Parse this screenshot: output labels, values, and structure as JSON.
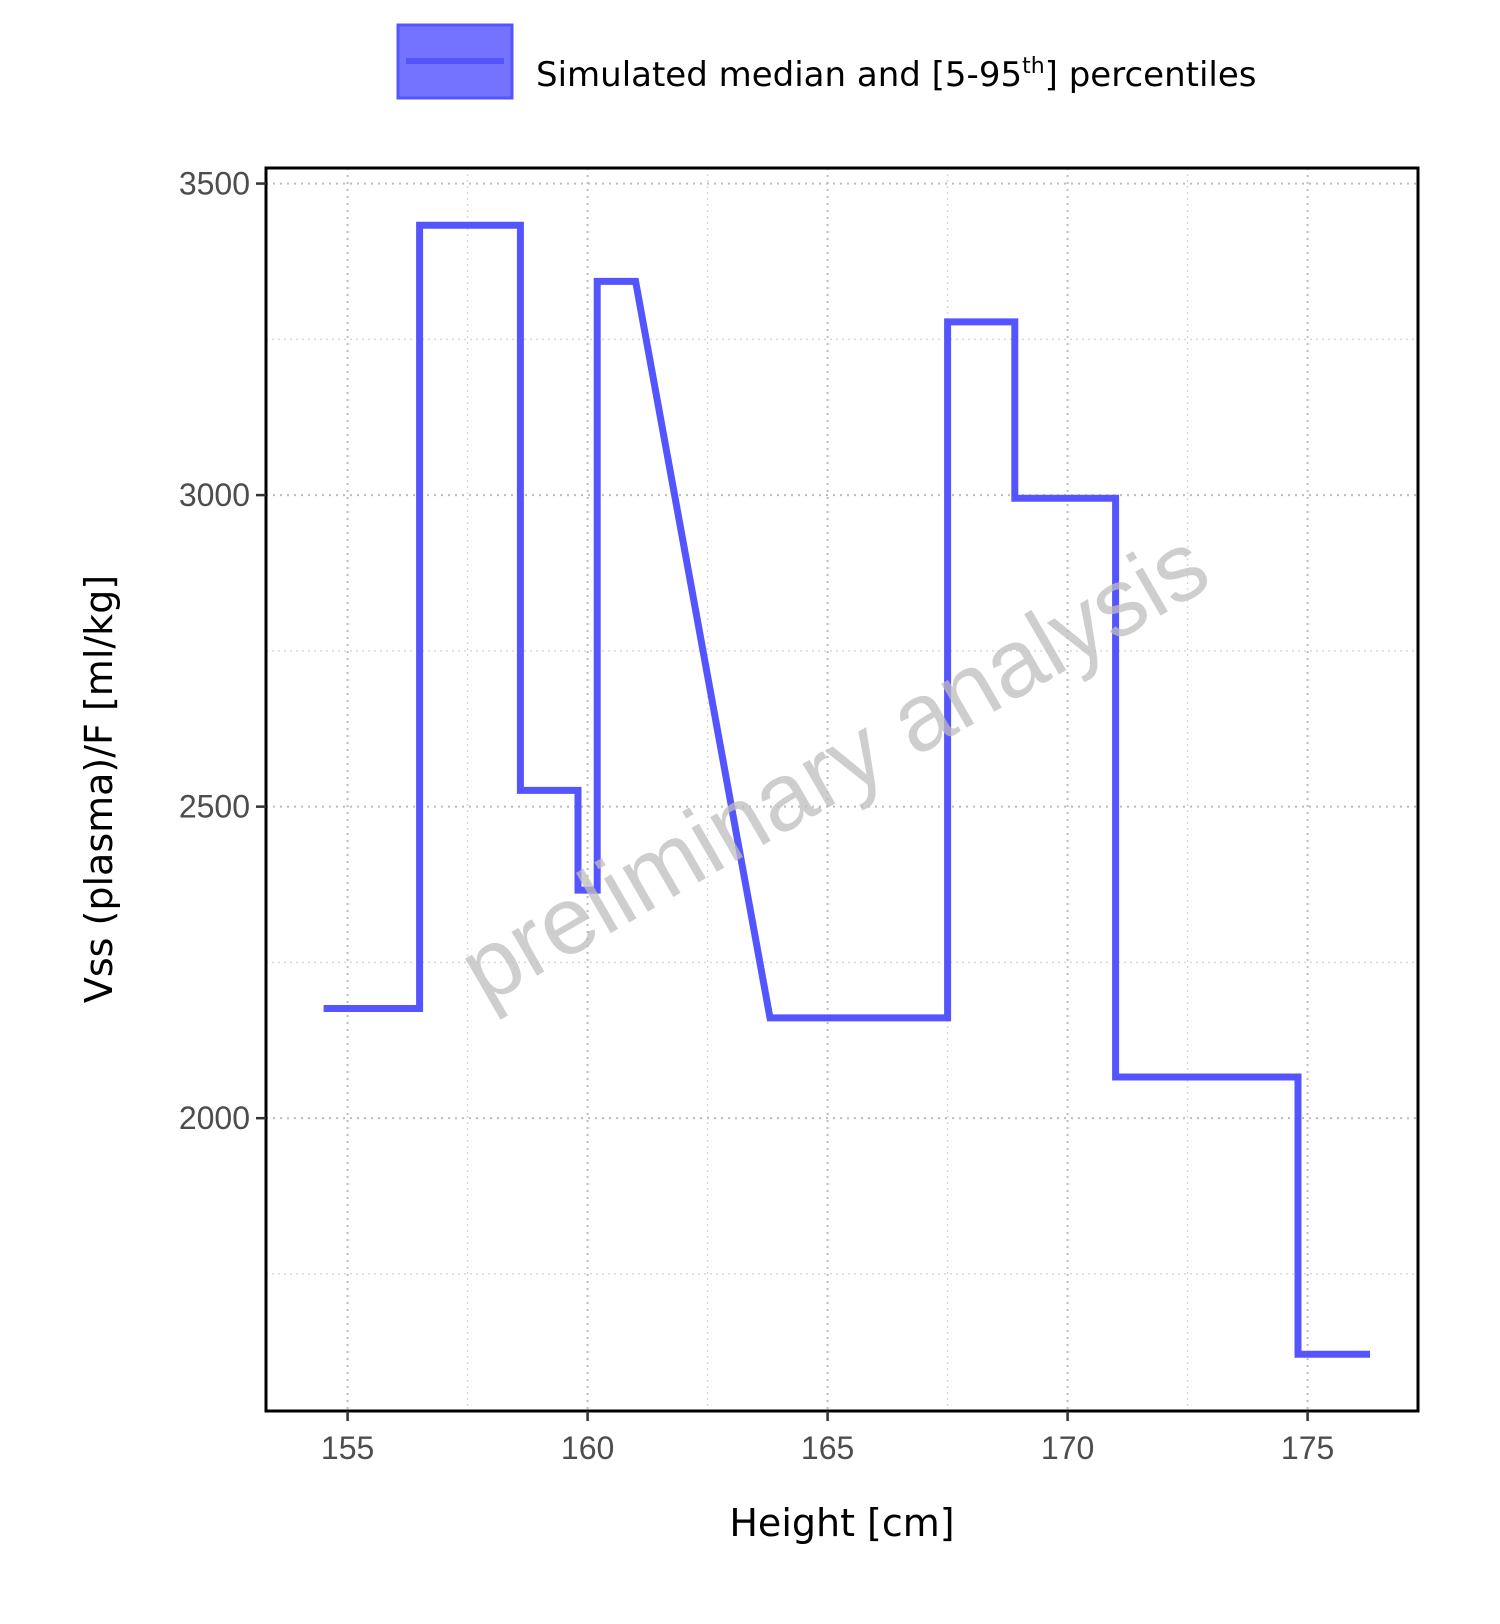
{
  "chart_data": {
    "type": "line",
    "line_shape": "step",
    "xlabel": "Height [cm]",
    "ylabel": "Vss (plasma)/F [ml/kg]",
    "xlim": [
      153.3,
      177.3
    ],
    "ylim": [
      1530,
      3525
    ],
    "xticks": [
      155,
      160,
      165,
      170,
      175
    ],
    "yticks": [
      2000,
      2500,
      3000,
      3500
    ],
    "xtick_labels": [
      "155",
      "160",
      "165",
      "170",
      "175"
    ],
    "ytick_labels": [
      "2000",
      "2500",
      "3000",
      "3500"
    ],
    "grid": true,
    "legend": {
      "position": "top",
      "label_main": "Simulated median and [5-95",
      "label_sup": "th",
      "label_end": "] percentiles"
    },
    "watermark": "preliminary analysis",
    "colors": {
      "line": "#5555ff",
      "legend_fill": "#7373ff"
    },
    "series": [
      {
        "name": "Simulated median and [5-95th] percentiles",
        "x": [
          154.5,
          156.5,
          156.5,
          158.6,
          158.6,
          159.8,
          159.8,
          160.2,
          160.2,
          161.0,
          163.8,
          167.5,
          167.5,
          168.9,
          168.9,
          171.0,
          171.0,
          174.8,
          174.8,
          176.3
        ],
        "y": [
          2176,
          2176,
          3433,
          3433,
          2526,
          2526,
          2366,
          2366,
          3343,
          3343,
          2161,
          2161,
          3278,
          3278,
          2995,
          2995,
          2066,
          2066,
          1621,
          1621
        ]
      }
    ]
  }
}
